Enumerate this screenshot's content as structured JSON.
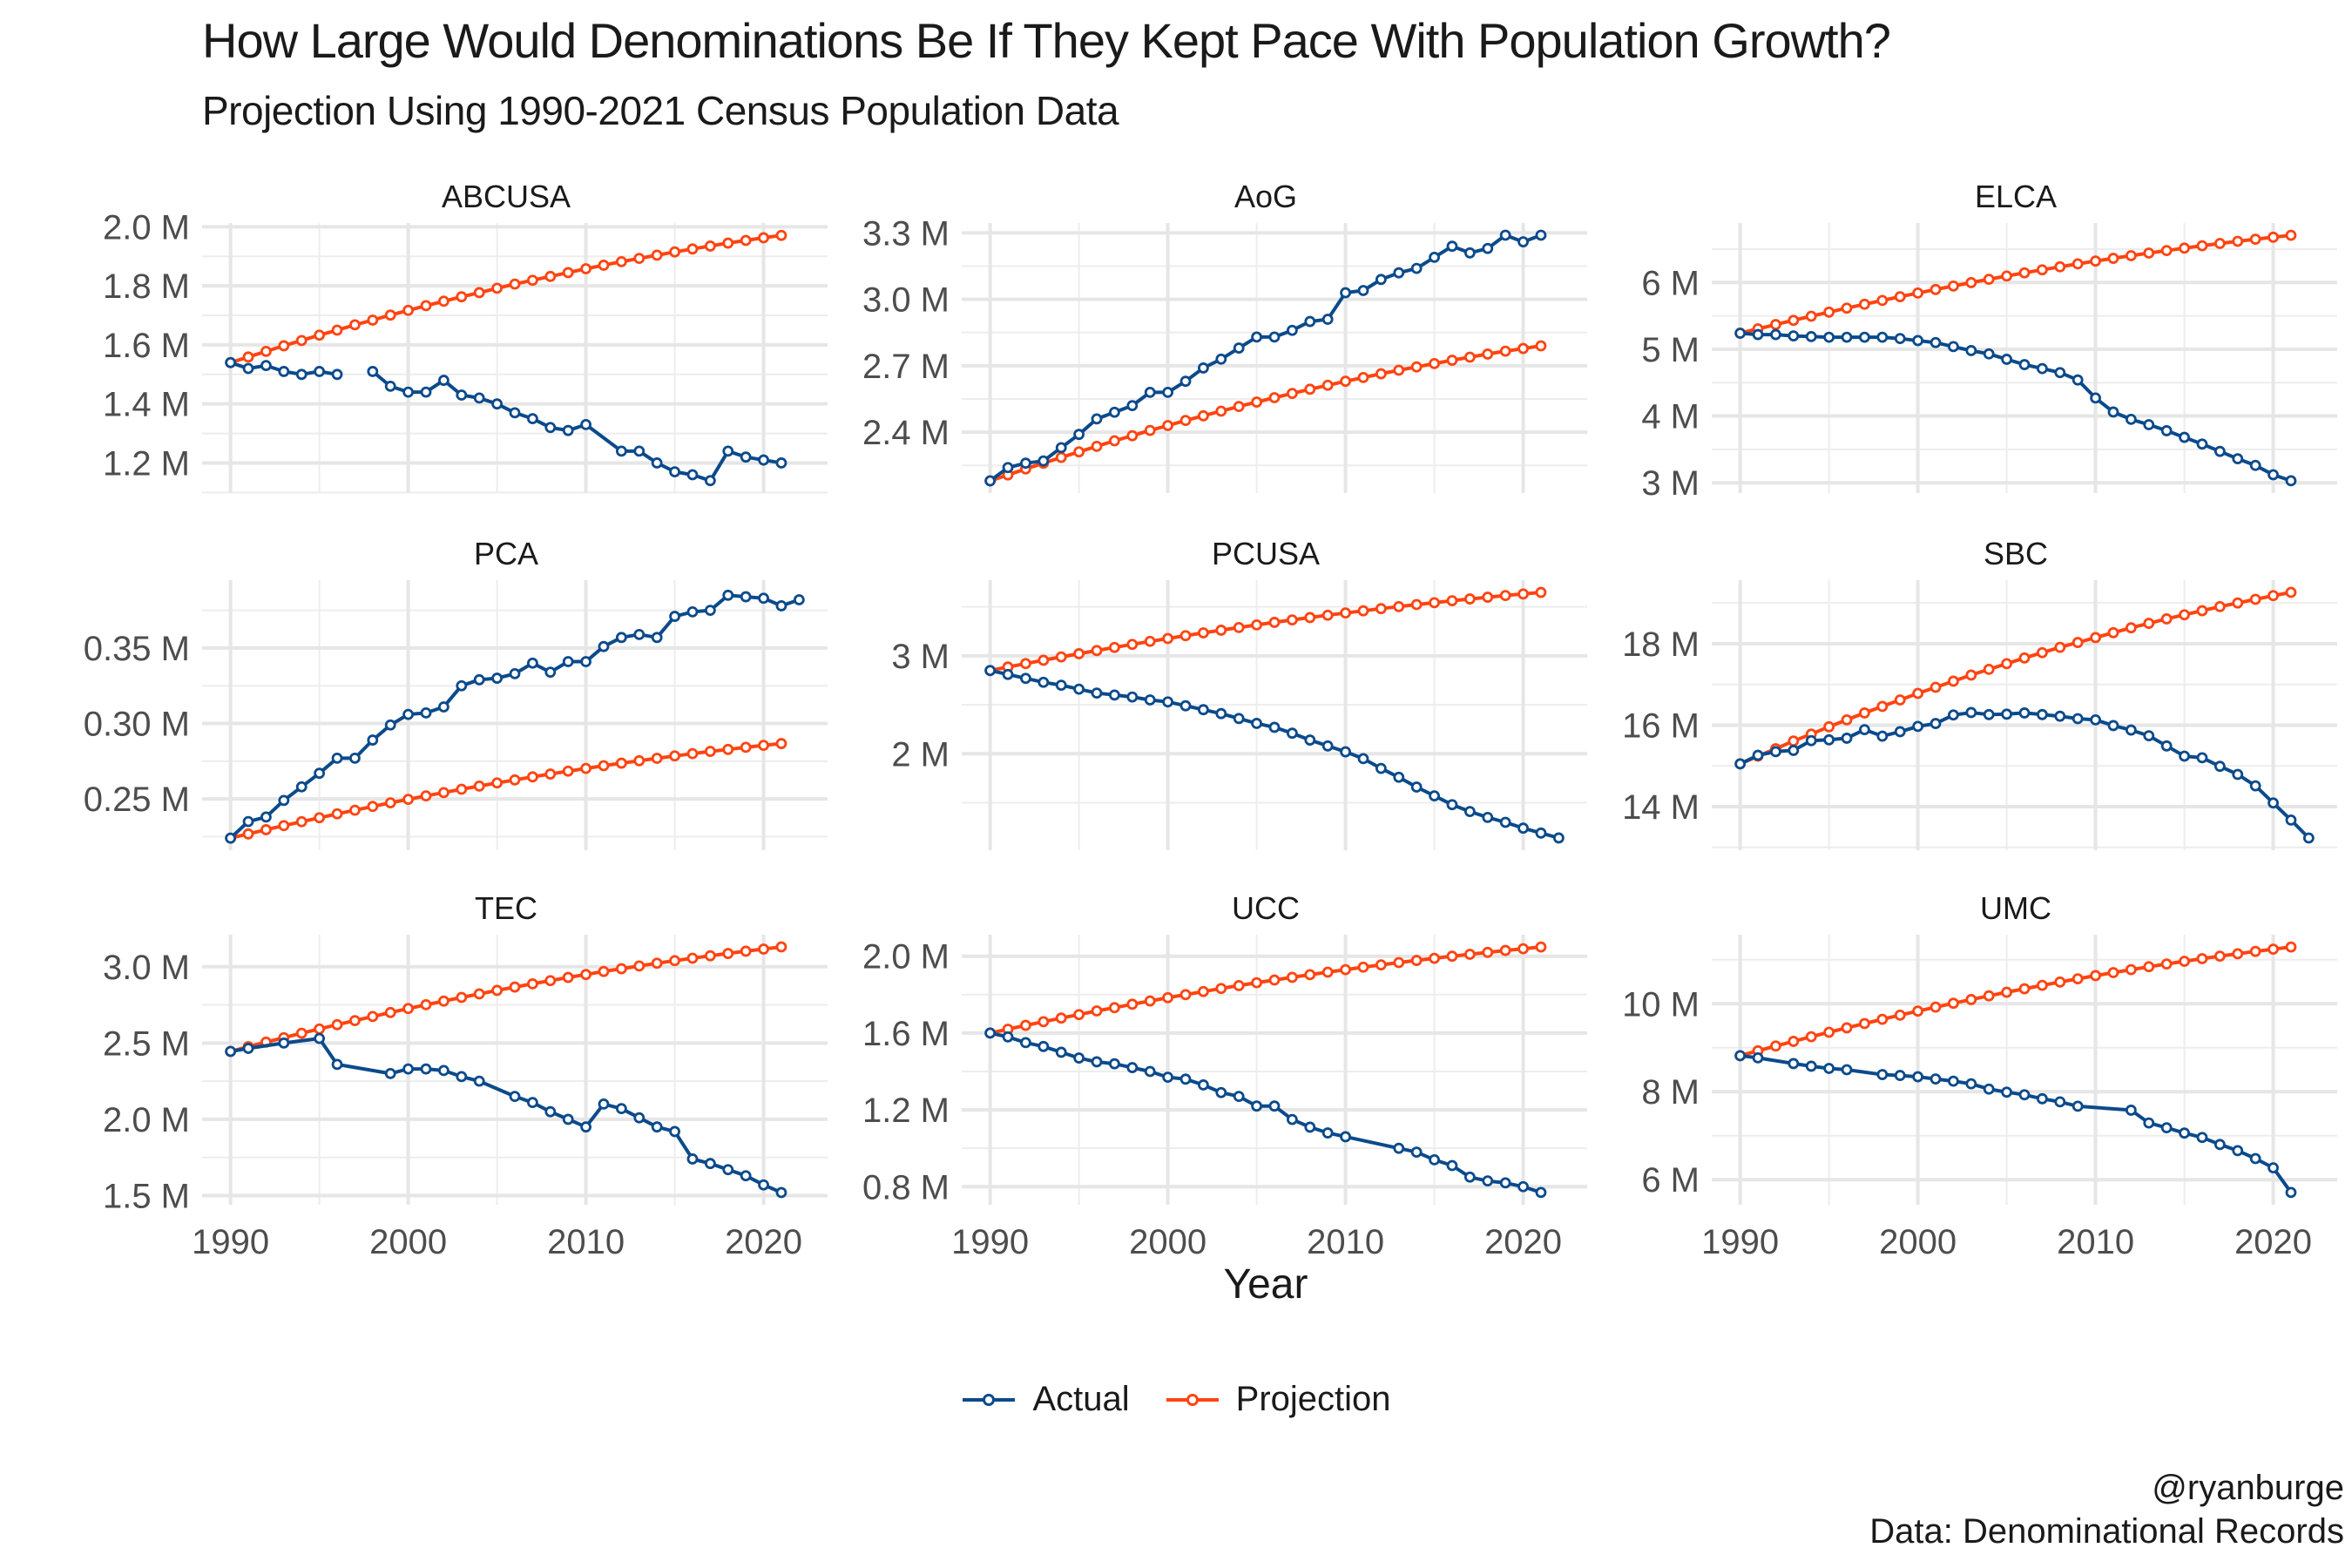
{
  "title": "How Large Would Denominations Be If They Kept Pace With Population Growth?",
  "subtitle": "Projection Using 1990-2021 Census Population Data",
  "caption": {
    "handle": "@ryanburge",
    "source": "Data: Denominational Records"
  },
  "chart_data": {
    "type": "line",
    "layout": "facet 3x3, free y scales",
    "xlabel": "Year",
    "ylabel": "",
    "x_ticks": [
      1990,
      2000,
      2010,
      2020
    ],
    "x_tick_labels": [
      "1990",
      "2000",
      "2010",
      "2020"
    ],
    "xlim": [
      1988.4,
      2023.6
    ],
    "grid": true,
    "legend": {
      "position": "bottom",
      "entries": [
        "Actual",
        "Projection"
      ]
    },
    "colors": {
      "Actual": "#0b4a8b",
      "Projection": "#ff4411"
    },
    "x": [
      1990,
      1991,
      1992,
      1993,
      1994,
      1995,
      1996,
      1997,
      1998,
      1999,
      2000,
      2001,
      2002,
      2003,
      2004,
      2005,
      2006,
      2007,
      2008,
      2009,
      2010,
      2011,
      2012,
      2013,
      2014,
      2015,
      2016,
      2017,
      2018,
      2019,
      2020,
      2021,
      2022
    ],
    "panels": [
      {
        "name": "ABCUSA",
        "unit": "M",
        "ylim": [
          1.098,
          2.013
        ],
        "y_ticks": [
          1.2,
          1.4,
          1.6,
          1.8,
          2.0
        ],
        "y_tick_labels": [
          "1.2 M",
          "1.4 M",
          "1.6 M",
          "1.8 M",
          "2.0 M"
        ],
        "series": [
          {
            "name": "Actual",
            "values": [
              1.54,
              1.52,
              1.53,
              1.51,
              1.5,
              1.51,
              1.5,
              "NA",
              1.51,
              1.46,
              1.44,
              1.44,
              1.48,
              1.43,
              1.42,
              1.4,
              1.37,
              1.35,
              1.32,
              1.31,
              1.33,
              null,
              1.24,
              1.24,
              1.2,
              1.17,
              1.16,
              1.14,
              1.24,
              1.22,
              1.21,
              1.2,
              null
            ]
          },
          {
            "name": "Projection",
            "values": [
              1.54,
              1.559,
              1.578,
              1.597,
              1.615,
              1.633,
              1.65,
              1.668,
              1.684,
              1.701,
              1.717,
              1.733,
              1.748,
              1.763,
              1.777,
              1.792,
              1.806,
              1.819,
              1.832,
              1.845,
              1.858,
              1.87,
              1.882,
              1.893,
              1.904,
              1.915,
              1.925,
              1.935,
              1.945,
              1.954,
              1.963,
              1.971,
              null
            ]
          }
        ]
      },
      {
        "name": "AoG",
        "unit": "M",
        "ylim": [
          2.125,
          3.345
        ],
        "y_ticks": [
          2.4,
          2.7,
          3.0,
          3.3
        ],
        "y_tick_labels": [
          "2.4 M",
          "2.7 M",
          "3.0 M",
          "3.3 M"
        ],
        "series": [
          {
            "name": "Actual",
            "values": [
              2.18,
              2.24,
              2.26,
              2.27,
              2.33,
              2.39,
              2.46,
              2.49,
              2.52,
              2.58,
              2.58,
              2.63,
              2.69,
              2.73,
              2.78,
              2.83,
              2.83,
              2.86,
              2.9,
              2.91,
              3.03,
              3.04,
              3.09,
              3.12,
              3.14,
              3.19,
              3.24,
              3.21,
              3.23,
              3.29,
              3.26,
              3.29,
              null
            ]
          },
          {
            "name": "Projection",
            "values": [
              2.18,
              2.207,
              2.234,
              2.26,
              2.286,
              2.311,
              2.336,
              2.361,
              2.384,
              2.408,
              2.43,
              2.453,
              2.474,
              2.495,
              2.516,
              2.536,
              2.556,
              2.575,
              2.594,
              2.612,
              2.63,
              2.647,
              2.664,
              2.68,
              2.695,
              2.71,
              2.725,
              2.739,
              2.753,
              2.766,
              2.778,
              2.79,
              null
            ]
          }
        ]
      },
      {
        "name": "ELCA",
        "unit": "M",
        "ylim": [
          2.846,
          6.891
        ],
        "y_ticks": [
          3,
          4,
          5,
          6
        ],
        "y_tick_labels": [
          "3 M",
          "4 M",
          "5 M",
          "6 M"
        ],
        "series": [
          {
            "name": "Actual",
            "values": [
              5.24,
              5.22,
              5.22,
              5.2,
              5.19,
              5.18,
              5.18,
              5.18,
              5.18,
              5.16,
              5.13,
              5.1,
              5.04,
              4.98,
              4.93,
              4.85,
              4.77,
              4.71,
              4.65,
              4.54,
              4.27,
              4.06,
              3.95,
              3.87,
              3.78,
              3.68,
              3.58,
              3.47,
              3.36,
              3.26,
              3.12,
              3.03,
              null
            ]
          },
          {
            "name": "Projection",
            "values": [
              5.24,
              5.306,
              5.37,
              5.433,
              5.495,
              5.556,
              5.616,
              5.674,
              5.731,
              5.787,
              5.842,
              5.895,
              5.947,
              5.998,
              6.048,
              6.097,
              6.144,
              6.19,
              6.235,
              6.279,
              6.321,
              6.362,
              6.402,
              6.441,
              6.478,
              6.515,
              6.55,
              6.584,
              6.617,
              6.648,
              6.678,
              6.707,
              null
            ]
          }
        ]
      },
      {
        "name": "PCA",
        "unit": "M",
        "ylim": [
          0.216,
          0.395
        ],
        "y_ticks": [
          0.25,
          0.3,
          0.35
        ],
        "y_tick_labels": [
          "0.25 M",
          "0.30 M",
          "0.35 M"
        ],
        "series": [
          {
            "name": "Actual",
            "values": [
              0.224,
              0.235,
              0.238,
              0.249,
              0.258,
              0.267,
              0.277,
              0.277,
              0.289,
              0.299,
              0.306,
              0.307,
              0.311,
              0.325,
              0.329,
              0.33,
              0.333,
              0.34,
              0.334,
              0.341,
              0.341,
              0.351,
              0.357,
              0.359,
              0.357,
              0.371,
              0.374,
              0.375,
              0.385,
              0.384,
              0.383,
              0.378,
              0.382
            ]
          },
          {
            "name": "Projection",
            "values": [
              0.224,
              0.2268,
              0.2296,
              0.2323,
              0.2349,
              0.2375,
              0.2401,
              0.2425,
              0.245,
              0.2474,
              0.2497,
              0.252,
              0.2542,
              0.2564,
              0.2585,
              0.2606,
              0.2626,
              0.2646,
              0.2665,
              0.2684,
              0.2702,
              0.272,
              0.2737,
              0.2753,
              0.2769,
              0.2785,
              0.28,
              0.2815,
              0.2828,
              0.2842,
              0.2855,
              0.2867,
              null
            ]
          }
        ]
      },
      {
        "name": "PCUSA",
        "unit": "M",
        "ylim": [
          1.015,
          3.773
        ],
        "y_ticks": [
          2,
          3
        ],
        "y_tick_labels": [
          "2 M",
          "3 M"
        ],
        "series": [
          {
            "name": "Actual",
            "values": [
              2.85,
              2.81,
              2.77,
              2.73,
              2.7,
              2.66,
              2.62,
              2.6,
              2.58,
              2.55,
              2.53,
              2.49,
              2.45,
              2.41,
              2.36,
              2.31,
              2.27,
              2.21,
              2.14,
              2.08,
              2.02,
              1.95,
              1.85,
              1.76,
              1.66,
              1.57,
              1.48,
              1.41,
              1.35,
              1.3,
              1.24,
              1.19,
              1.14
            ]
          },
          {
            "name": "Projection",
            "values": [
              2.85,
              2.886,
              2.921,
              2.955,
              2.989,
              3.022,
              3.054,
              3.086,
              3.117,
              3.148,
              3.177,
              3.206,
              3.235,
              3.262,
              3.289,
              3.316,
              3.342,
              3.367,
              3.391,
              3.415,
              3.438,
              3.46,
              3.482,
              3.503,
              3.524,
              3.543,
              3.563,
              3.581,
              3.599,
              3.616,
              3.632,
              3.648,
              null
            ]
          }
        ]
      },
      {
        "name": "SBC",
        "unit": "M",
        "ylim": [
          12.93,
          19.56
        ],
        "y_ticks": [
          14,
          16,
          18
        ],
        "y_tick_labels": [
          "14 M",
          "16 M",
          "18 M"
        ],
        "series": [
          {
            "name": "Actual",
            "values": [
              15.05,
              15.26,
              15.35,
              15.38,
              15.62,
              15.64,
              15.68,
              15.89,
              15.73,
              15.84,
              15.97,
              16.04,
              16.25,
              16.31,
              16.26,
              16.27,
              16.3,
              16.26,
              16.22,
              16.16,
              16.13,
              15.99,
              15.88,
              15.74,
              15.49,
              15.24,
              15.2,
              14.99,
              14.79,
              14.51,
              14.09,
              13.67,
              13.23
            ]
          },
          {
            "name": "Projection",
            "values": [
              15.05,
              15.24,
              15.42,
              15.61,
              15.78,
              15.96,
              16.13,
              16.3,
              16.46,
              16.62,
              16.78,
              16.93,
              17.08,
              17.23,
              17.37,
              17.51,
              17.65,
              17.78,
              17.91,
              18.03,
              18.15,
              18.27,
              18.39,
              18.5,
              18.61,
              18.71,
              18.81,
              18.91,
              19.0,
              19.09,
              19.18,
              19.26,
              null
            ]
          }
        ]
      },
      {
        "name": "TEC",
        "unit": "M",
        "ylim": [
          1.44,
          3.21
        ],
        "y_ticks": [
          1.5,
          2.0,
          2.5,
          3.0
        ],
        "y_tick_labels": [
          "1.5 M",
          "2.0 M",
          "2.5 M",
          "3.0 M"
        ],
        "series": [
          {
            "name": "Actual",
            "values": [
              2.445,
              2.465,
              null,
              2.5,
              null,
              2.53,
              2.36,
              null,
              null,
              2.3,
              2.33,
              2.33,
              2.32,
              2.28,
              2.25,
              null,
              2.15,
              2.11,
              2.05,
              2.0,
              1.95,
              2.1,
              2.07,
              2.01,
              1.95,
              1.92,
              1.74,
              1.71,
              1.67,
              1.63,
              1.57,
              1.52,
              null
            ]
          },
          {
            "name": "Projection",
            "values": [
              2.445,
              2.476,
              2.506,
              2.535,
              2.564,
              2.592,
              2.62,
              2.647,
              2.674,
              2.7,
              2.726,
              2.751,
              2.775,
              2.799,
              2.822,
              2.845,
              2.867,
              2.888,
              2.909,
              2.93,
              2.949,
              2.969,
              2.987,
              3.005,
              3.023,
              3.04,
              3.056,
              3.072,
              3.087,
              3.102,
              3.116,
              3.13,
              null
            ]
          }
        ]
      },
      {
        "name": "UCC",
        "unit": "M",
        "ylim": [
          0.706,
          2.112
        ],
        "y_ticks": [
          0.8,
          1.2,
          1.6,
          2.0
        ],
        "y_tick_labels": [
          "0.8 M",
          "1.2 M",
          "1.6 M",
          "2.0 M"
        ],
        "series": [
          {
            "name": "Actual",
            "values": [
              1.6,
              1.58,
              1.55,
              1.53,
              1.5,
              1.47,
              1.45,
              1.44,
              1.42,
              1.4,
              1.37,
              1.36,
              1.33,
              1.29,
              1.27,
              1.22,
              1.22,
              1.15,
              1.11,
              1.08,
              1.06,
              null,
              null,
              1.0,
              0.98,
              0.94,
              0.91,
              0.85,
              0.83,
              0.82,
              0.8,
              0.77,
              null
            ]
          },
          {
            "name": "Projection",
            "values": [
              1.6,
              1.62,
              1.64,
              1.659,
              1.678,
              1.696,
              1.715,
              1.732,
              1.75,
              1.767,
              1.784,
              1.8,
              1.816,
              1.832,
              1.847,
              1.862,
              1.876,
              1.89,
              1.904,
              1.917,
              1.93,
              1.943,
              1.955,
              1.967,
              1.978,
              1.989,
              2.0,
              2.01,
              2.02,
              2.03,
              2.039,
              2.048,
              null
            ]
          }
        ]
      },
      {
        "name": "UMC",
        "unit": "M",
        "ylim": [
          5.43,
          11.57
        ],
        "y_ticks": [
          6,
          8,
          10
        ],
        "y_tick_labels": [
          "6 M",
          "8 M",
          "10 M"
        ],
        "series": [
          {
            "name": "Actual",
            "values": [
              8.82,
              8.77,
              null,
              8.64,
              8.58,
              8.53,
              8.5,
              null,
              8.39,
              8.37,
              8.34,
              8.29,
              8.24,
              8.18,
              8.06,
              7.99,
              7.93,
              7.84,
              7.77,
              7.67,
              null,
              null,
              7.58,
              7.29,
              7.18,
              7.06,
              6.96,
              6.8,
              6.66,
              6.48,
              6.27,
              5.71,
              null
            ]
          },
          {
            "name": "Projection",
            "values": [
              8.82,
              8.93,
              9.039,
              9.145,
              9.25,
              9.352,
              9.452,
              9.55,
              9.646,
              9.741,
              9.833,
              9.923,
              10.011,
              10.096,
              10.18,
              10.262,
              10.341,
              10.419,
              10.494,
              10.568,
              10.64,
              10.708,
              10.776,
              10.842,
              10.904,
              10.966,
              11.025,
              11.082,
              11.137,
              11.19,
              11.241,
              11.29,
              null
            ]
          }
        ]
      }
    ]
  }
}
